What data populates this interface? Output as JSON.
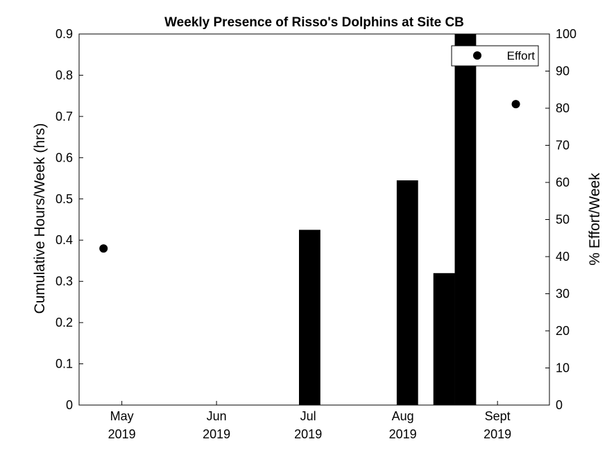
{
  "chart_data": {
    "type": "bar",
    "title": "Weekly Presence of Risso's Dolphins at Site CB",
    "ylabel": "Cumulative Hours/Week (hrs)",
    "ylabel_right": "% Effort/Week",
    "ylim": [
      0,
      0.9
    ],
    "ylim_right": [
      0,
      100
    ],
    "yticks": [
      0,
      0.1,
      0.2,
      0.3,
      0.4,
      0.5,
      0.6,
      0.7,
      0.8,
      0.9
    ],
    "yticks_right": [
      0,
      10,
      20,
      30,
      40,
      50,
      60,
      70,
      80,
      90,
      100
    ],
    "xlim": [
      "2019-04-17",
      "2019-09-18"
    ],
    "xticks": [
      {
        "date": "2019-05-01",
        "month": "May",
        "year": "2019"
      },
      {
        "date": "2019-06-01",
        "month": "Jun",
        "year": "2019"
      },
      {
        "date": "2019-07-01",
        "month": "Jul",
        "year": "2019"
      },
      {
        "date": "2019-08-01",
        "month": "Aug",
        "year": "2019"
      },
      {
        "date": "2019-09-01",
        "month": "Sept",
        "year": "2019"
      }
    ],
    "bar_width_days": 7,
    "bar_color": "#000000",
    "bars": [
      {
        "week_start": "2019-06-28",
        "value": 0.425
      },
      {
        "week_start": "2019-07-30",
        "value": 0.545
      },
      {
        "week_start": "2019-08-11",
        "value": 0.32
      },
      {
        "week_start": "2019-08-18",
        "value": 0.9
      }
    ],
    "effort_series": {
      "name": "Effort",
      "marker_color": "#000000",
      "points": [
        {
          "date": "2019-04-25",
          "value": 42.2
        },
        {
          "date": "2019-09-07",
          "value": 81.1
        }
      ]
    },
    "legend": {
      "position": "top-right",
      "entries": [
        "Effort"
      ]
    },
    "grid": false
  }
}
